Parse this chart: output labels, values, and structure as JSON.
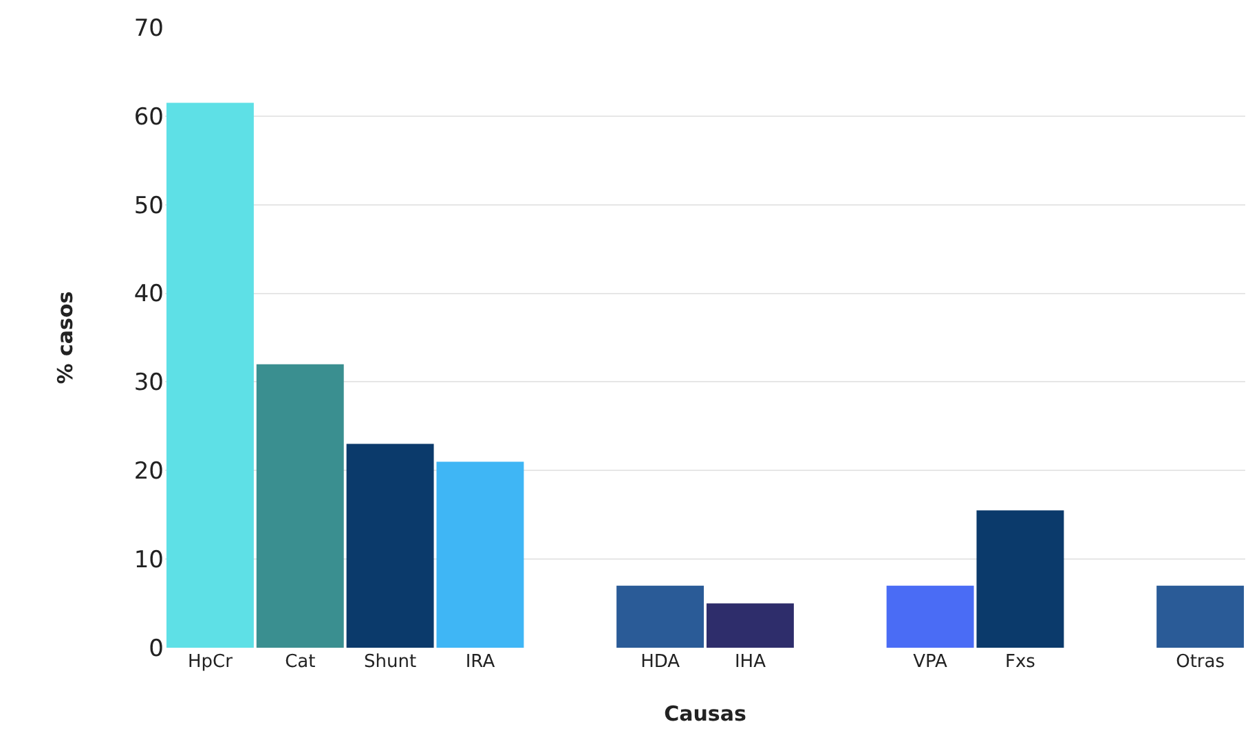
{
  "chart_data": {
    "type": "bar",
    "xlabel": "Causas",
    "ylabel": "% casos",
    "categories": [
      "HpCr",
      "Cat",
      "Shunt",
      "IRA",
      null,
      "HDA",
      "IHA",
      null,
      "VPA",
      "Fxs",
      null,
      "Otras"
    ],
    "values": [
      61.5,
      32,
      23,
      21,
      null,
      7,
      5,
      null,
      7,
      15.5,
      null,
      7
    ],
    "colors": [
      "#5ee0e6",
      "#3a8f90",
      "#0b3a6b",
      "#3fb6f5",
      null,
      "#2a5b97",
      "#2e2d6b",
      null,
      "#4a6cf5",
      "#0b3a6b",
      null,
      "#2a5b97"
    ],
    "ylim": [
      0,
      70
    ],
    "yticks": [
      0,
      10,
      20,
      30,
      40,
      50,
      60,
      70
    ],
    "grid": "y"
  }
}
